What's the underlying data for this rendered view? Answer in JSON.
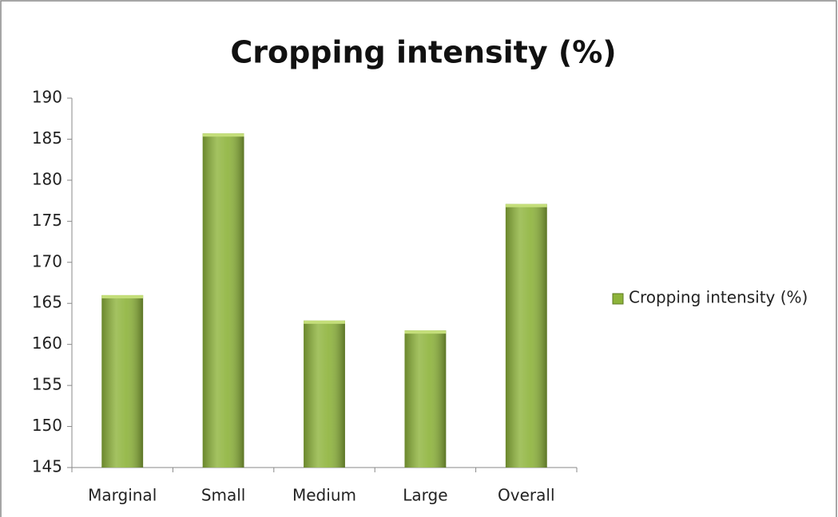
{
  "chart_data": {
    "type": "bar",
    "title": "Cropping intensity (%)",
    "categories": [
      "Marginal",
      "Small",
      "Medium",
      "Large",
      "Overall"
    ],
    "series": [
      {
        "name": "Cropping intensity (%)",
        "color": "#8db33a",
        "values": [
          166.0,
          185.7,
          162.9,
          161.7,
          177.1
        ]
      }
    ],
    "ylim": [
      145,
      190
    ],
    "yticks": [
      145,
      150,
      155,
      160,
      165,
      170,
      175,
      180,
      185,
      190
    ],
    "grid": false,
    "legend": "right"
  }
}
